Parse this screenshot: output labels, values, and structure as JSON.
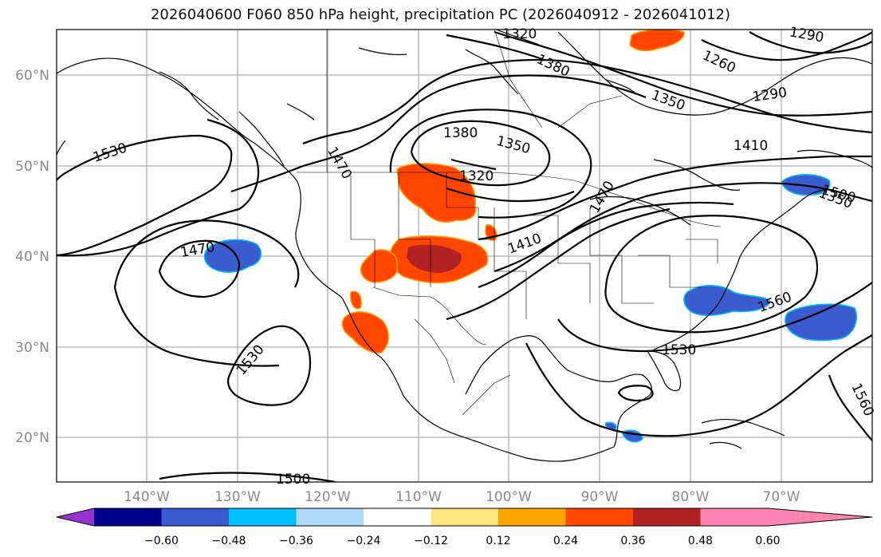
{
  "title": "2026040600 F060 850 hPa height, precipitation PC (2026040912 - 2026041012)",
  "lat_labels": [
    "60°N",
    "50°N",
    "40°N",
    "30°N",
    "20°N"
  ],
  "lon_labels": [
    "140°W",
    "130°W",
    "120°W",
    "110°W",
    "100°W",
    "90°W",
    "80°W",
    "70°W"
  ],
  "contour_labels": [
    "1320",
    "1380",
    "1350",
    "1290",
    "1410",
    "1350",
    "1260",
    "1530",
    "1470",
    "1380",
    "1350",
    "1320",
    "1410",
    "1470",
    "1530",
    "1560",
    "1530",
    "1500",
    "1560",
    "1500",
    "1290"
  ],
  "colorbar": {
    "ticks": [
      "−0.60",
      "−0.48",
      "−0.36",
      "−0.24",
      "−0.12",
      "0.12",
      "0.24",
      "0.36",
      "0.48",
      "0.60"
    ],
    "colors": [
      "#9932cc",
      "#00008b",
      "#3b5ccf",
      "#00bfff",
      "#add8f6",
      "#ffffff",
      "#ffe680",
      "#ffa500",
      "#ff4500",
      "#b22222",
      "#ff85b0"
    ]
  }
}
